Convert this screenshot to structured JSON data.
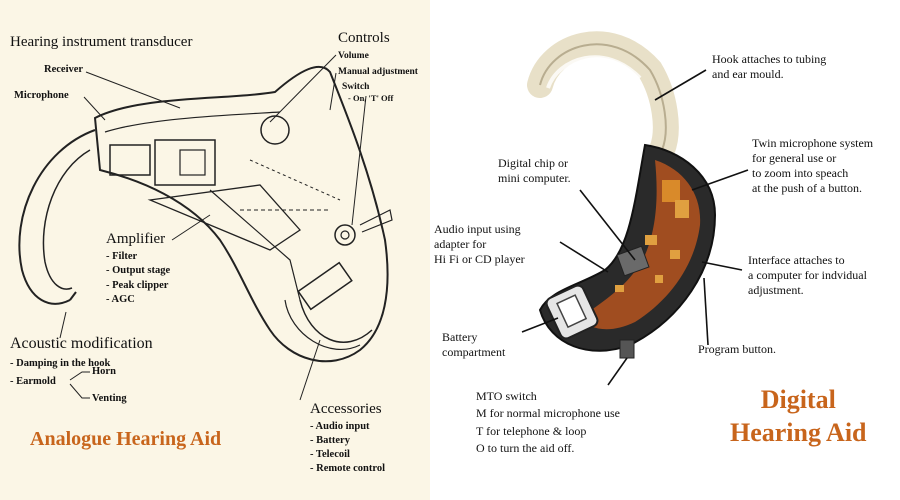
{
  "left": {
    "title": "Hearing instrument transducer",
    "receiver": "Receiver",
    "microphone": "Microphone",
    "controls": {
      "heading": "Controls",
      "items": [
        "Volume",
        "Manual adjustment",
        "Switch",
        "- On, 'T' Off"
      ]
    },
    "amplifier": {
      "heading": "Amplifier",
      "items": [
        "- Filter",
        "- Output stage",
        "- Peak clipper",
        "- AGC"
      ]
    },
    "acoustic": {
      "heading": "Acoustic modification",
      "damping": "- Damping in the hook",
      "earmold": "- Earmold",
      "horn": "Horn",
      "venting": "Venting"
    },
    "accessories": {
      "heading": "Accessories",
      "items": [
        "- Audio input",
        "- Battery",
        "- Telecoil",
        "- Remote control"
      ]
    },
    "caption": "Analogue Hearing Aid"
  },
  "right": {
    "hook": [
      "Hook attaches to tubing",
      "and ear mould."
    ],
    "chip": [
      "Digital chip or",
      "mini computer."
    ],
    "twin_mic": [
      "Twin microphone system",
      "for general use or",
      "to zoom into speach",
      "at the push of a button."
    ],
    "audio_input": [
      "Audio input using",
      "adapter for",
      "Hi Fi or CD player"
    ],
    "interface": [
      "Interface attaches to",
      "a computer for indvidual",
      "adjustment."
    ],
    "battery": [
      "Battery",
      "compartment"
    ],
    "program": "Program button.",
    "mto": [
      "MTO switch",
      "M  for normal microphone use",
      "T  for telephone & loop",
      "O  to turn the aid off."
    ],
    "caption": [
      "Digital",
      "Hearing Aid"
    ]
  },
  "colors": {
    "left_bg": "#fbf6e6",
    "caption": "#c8651c"
  }
}
